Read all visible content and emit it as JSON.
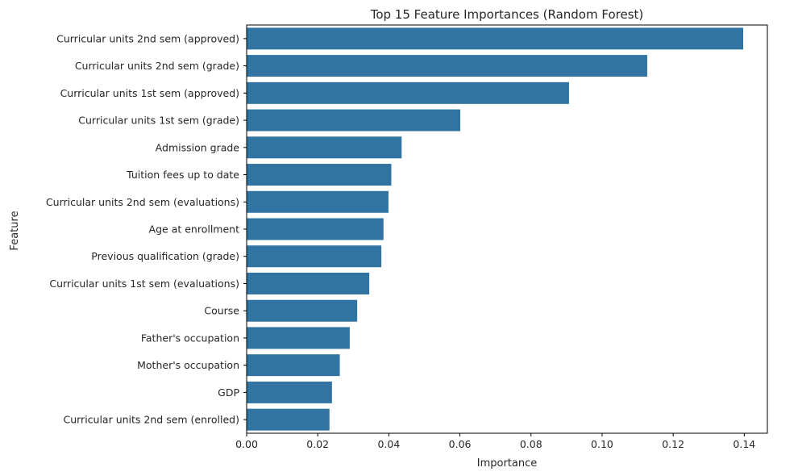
{
  "chart_data": {
    "type": "bar",
    "orientation": "horizontal",
    "title": "Top 15 Feature Importances (Random Forest)",
    "xlabel": "Importance",
    "ylabel": "Feature",
    "xlim": [
      0,
      0.1465
    ],
    "xticks": [
      0.0,
      0.02,
      0.04,
      0.06,
      0.08,
      0.1,
      0.12,
      0.14
    ],
    "xtick_labels": [
      "0.00",
      "0.02",
      "0.04",
      "0.06",
      "0.08",
      "0.10",
      "0.12",
      "0.14"
    ],
    "grid": false,
    "bar_color": "#3274a1",
    "categories": [
      "Curricular units 2nd sem (approved)",
      "Curricular units 2nd sem (grade)",
      "Curricular units 1st sem (approved)",
      "Curricular units 1st sem (grade)",
      "Admission grade",
      "Tuition fees up to date",
      "Curricular units 2nd sem (evaluations)",
      "Age at enrollment",
      "Previous qualification (grade)",
      "Curricular units 1st sem (evaluations)",
      "Course",
      "Father's occupation",
      "Mother's occupation",
      "GDP",
      "Curricular units 2nd sem (enrolled)"
    ],
    "values": [
      0.1397,
      0.1127,
      0.0907,
      0.0601,
      0.0436,
      0.0407,
      0.0399,
      0.0385,
      0.0379,
      0.0345,
      0.0311,
      0.029,
      0.0262,
      0.024,
      0.0233
    ]
  }
}
